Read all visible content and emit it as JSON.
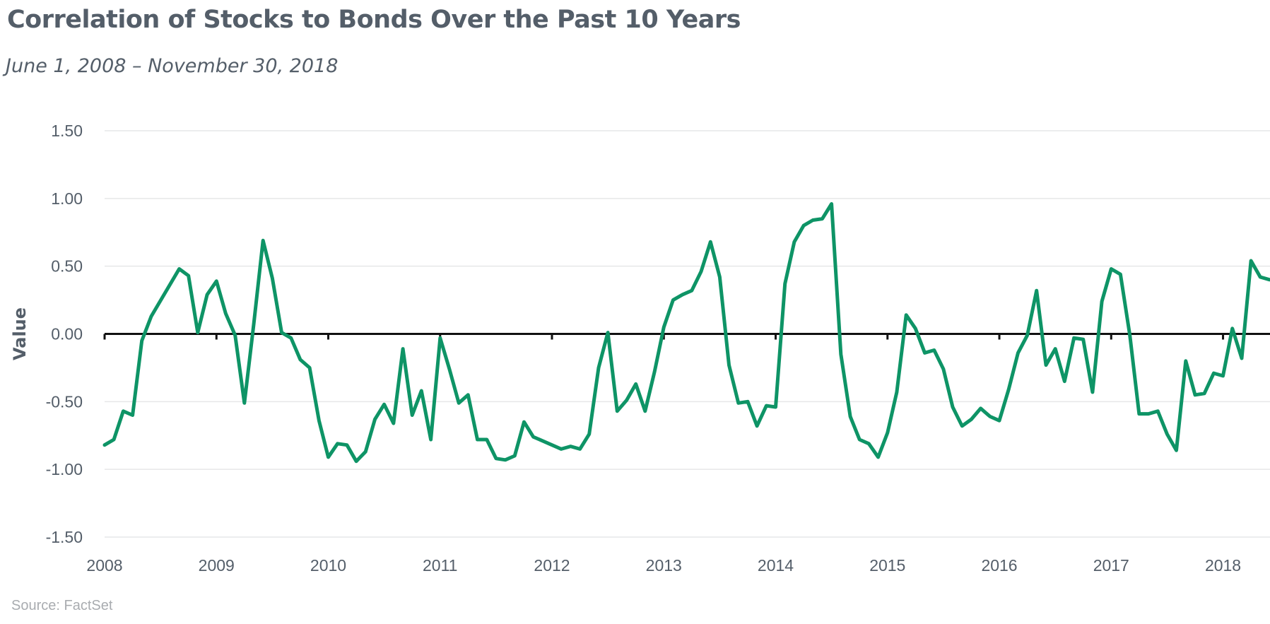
{
  "title": "Correlation of Stocks to Bonds Over the Past 10 Years",
  "subtitle": "June 1, 2008 – November 30, 2018",
  "source": "Source: FactSet",
  "colors": {
    "line": "#0e9466",
    "grid": "#e6e7e8",
    "zero": "#111111",
    "text": "#545e69"
  },
  "chart_data": {
    "type": "line",
    "title": "Correlation of Stocks to Bonds Over the Past 10 Years",
    "subtitle": "June 1, 2008 – November 30, 2018",
    "xlabel": "",
    "ylabel": "Value",
    "xlim": [
      2008.0,
      2018.42
    ],
    "ylim": [
      -1.5,
      1.5
    ],
    "yticks": [
      1.5,
      1.0,
      0.5,
      0.0,
      -0.5,
      -1.0,
      -1.5
    ],
    "ytick_labels": [
      "1.50",
      "1.00",
      "0.50",
      "0.00",
      "-0.50",
      "-1.00",
      "-1.50"
    ],
    "xticks": [
      2008,
      2009,
      2010,
      2011,
      2012,
      2013,
      2014,
      2015,
      2016,
      2017,
      2018
    ],
    "xtick_labels": [
      "2008",
      "2009",
      "2010",
      "2011",
      "2012",
      "2013",
      "2014",
      "2015",
      "2016",
      "2017",
      "2018"
    ],
    "grid": true,
    "legend": "none",
    "series": [
      {
        "x": [
          2008.0,
          2008.083,
          2008.167,
          2008.25,
          2008.333,
          2008.417,
          2008.667,
          2008.75,
          2008.833,
          2008.917,
          2009.0,
          2009.083,
          2009.167,
          2009.25,
          2009.333,
          2009.417,
          2009.5,
          2009.583,
          2009.667,
          2009.75,
          2009.833,
          2009.917,
          2010.0,
          2010.083,
          2010.167,
          2010.25,
          2010.333,
          2010.417,
          2010.5,
          2010.583,
          2010.667,
          2010.75,
          2010.833,
          2010.917,
          2011.0,
          2011.083,
          2011.167,
          2011.25,
          2011.333,
          2011.417,
          2011.5,
          2011.583,
          2011.667,
          2011.75,
          2011.833,
          2011.917,
          2012.0,
          2012.083,
          2012.167,
          2012.25,
          2012.333,
          2012.417,
          2012.5,
          2012.583,
          2012.667,
          2012.75,
          2012.833,
          2012.917,
          2013.0,
          2013.083,
          2013.167,
          2013.25,
          2013.333,
          2013.417,
          2013.5,
          2013.583,
          2013.667,
          2013.75,
          2013.833,
          2013.917,
          2014.0,
          2014.083,
          2014.167,
          2014.25,
          2014.333,
          2014.417,
          2014.5,
          2014.583,
          2014.667,
          2014.75,
          2014.833,
          2014.917,
          2015.0,
          2015.083,
          2015.167,
          2015.25,
          2015.333,
          2015.417,
          2015.5,
          2015.583,
          2015.667,
          2015.75,
          2015.833,
          2015.917,
          2016.0,
          2016.083,
          2016.167,
          2016.25,
          2016.333,
          2016.417,
          2016.5,
          2016.583,
          2016.667,
          2016.75,
          2016.833,
          2016.917,
          2017.0,
          2017.083,
          2017.167,
          2017.25,
          2017.333,
          2017.417,
          2017.5,
          2017.583,
          2017.667,
          2017.75,
          2017.833,
          2017.917,
          2018.0,
          2018.083,
          2018.167,
          2018.25,
          2018.333,
          2018.417
        ],
        "y": [
          -0.82,
          -0.78,
          -0.57,
          -0.6,
          -0.05,
          0.13,
          0.48,
          0.43,
          0.01,
          0.29,
          0.39,
          0.15,
          -0.01,
          -0.51,
          0.07,
          0.69,
          0.41,
          0.01,
          -0.03,
          -0.19,
          -0.25,
          -0.64,
          -0.91,
          -0.81,
          -0.82,
          -0.94,
          -0.87,
          -0.63,
          -0.52,
          -0.66,
          -0.11,
          -0.6,
          -0.42,
          -0.78,
          -0.03,
          -0.26,
          -0.51,
          -0.45,
          -0.78,
          -0.78,
          -0.92,
          -0.93,
          -0.9,
          -0.65,
          -0.76,
          -0.79,
          -0.82,
          -0.85,
          -0.83,
          -0.85,
          -0.74,
          -0.25,
          0.01,
          -0.57,
          -0.49,
          -0.37,
          -0.57,
          -0.28,
          0.05,
          0.25,
          0.29,
          0.32,
          0.46,
          0.68,
          0.42,
          -0.23,
          -0.51,
          -0.5,
          -0.68,
          -0.53,
          -0.54,
          0.37,
          0.68,
          0.8,
          0.84,
          0.85,
          0.96,
          -0.15,
          -0.61,
          -0.78,
          -0.81,
          -0.91,
          -0.73,
          -0.43,
          0.14,
          0.04,
          -0.14,
          -0.12,
          -0.26,
          -0.54,
          -0.68,
          -0.63,
          -0.55,
          -0.61,
          -0.64,
          -0.41,
          -0.14,
          -0.01,
          0.32,
          -0.23,
          -0.11,
          -0.35,
          -0.03,
          -0.04,
          -0.43,
          0.24,
          0.48,
          0.44,
          -0.01,
          -0.59,
          -0.59,
          -0.57,
          -0.74,
          -0.86,
          -0.2,
          -0.45,
          -0.44,
          -0.29,
          -0.31,
          0.04,
          -0.18,
          0.54,
          0.42,
          0.4
        ]
      }
    ]
  }
}
